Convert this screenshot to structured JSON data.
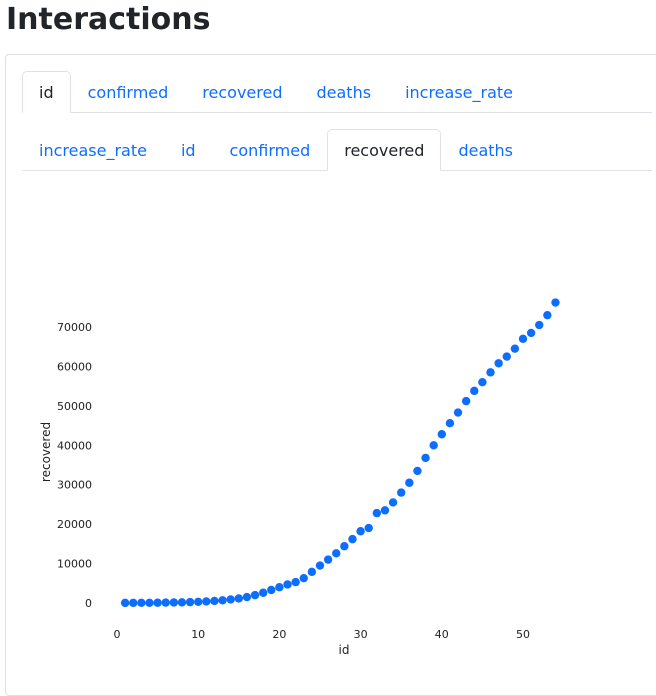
{
  "page": {
    "title": "Interactions"
  },
  "tabs_outer": [
    {
      "label": "id",
      "active": true
    },
    {
      "label": "confirmed",
      "active": false
    },
    {
      "label": "recovered",
      "active": false
    },
    {
      "label": "deaths",
      "active": false
    },
    {
      "label": "increase_rate",
      "active": false
    }
  ],
  "tabs_inner": [
    {
      "label": "increase_rate",
      "active": false
    },
    {
      "label": "id",
      "active": false
    },
    {
      "label": "confirmed",
      "active": false
    },
    {
      "label": "recovered",
      "active": true
    },
    {
      "label": "deaths",
      "active": false
    }
  ],
  "colors": {
    "point": "#0d6efd",
    "link": "#0d6efd"
  },
  "chart_data": {
    "type": "scatter",
    "title": "",
    "xlabel": "id",
    "ylabel": "recovered",
    "xlim": [
      0,
      56
    ],
    "ylim": [
      -2000,
      78000
    ],
    "xticks": [
      0,
      10,
      20,
      30,
      40,
      50
    ],
    "yticks": [
      0,
      10000,
      20000,
      30000,
      40000,
      50000,
      60000,
      70000
    ],
    "grid": false,
    "x": [
      1,
      2,
      3,
      4,
      5,
      6,
      7,
      8,
      9,
      10,
      11,
      12,
      13,
      14,
      15,
      16,
      17,
      18,
      19,
      20,
      21,
      22,
      23,
      24,
      25,
      26,
      27,
      28,
      29,
      30,
      31,
      32,
      33,
      34,
      35,
      36,
      37,
      38,
      39,
      40,
      41,
      42,
      43,
      44,
      45,
      46,
      47,
      48,
      49,
      50,
      51,
      52,
      53,
      54
    ],
    "y": [
      30,
      35,
      40,
      55,
      70,
      100,
      130,
      160,
      220,
      300,
      400,
      520,
      680,
      900,
      1150,
      1500,
      2000,
      2600,
      3300,
      4000,
      4700,
      5300,
      6300,
      7900,
      9500,
      11000,
      12600,
      14400,
      16200,
      18200,
      19000,
      22800,
      23500,
      25500,
      28000,
      30500,
      33500,
      36800,
      40000,
      42800,
      45600,
      48300,
      51200,
      53800,
      56000,
      58500,
      60800,
      62500,
      64500,
      67000,
      68500,
      70500,
      73000,
      76200
    ]
  }
}
